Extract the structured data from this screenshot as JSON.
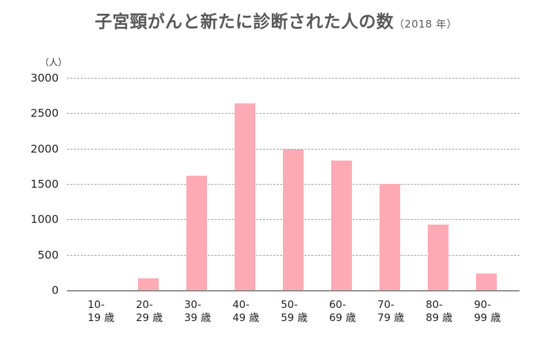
{
  "chart_data": {
    "type": "bar",
    "title": "子宮頸がんと新たに診断された人の数",
    "subtitle": "（2018 年）",
    "xlabel": "",
    "ylabel": "（人）",
    "ylim": [
      0,
      3000
    ],
    "yticks": [
      0,
      500,
      1000,
      1500,
      2000,
      2500,
      3000
    ],
    "grid": true,
    "legend": null,
    "categories": [
      "10-19歳",
      "20-29歳",
      "30-39歳",
      "40-49歳",
      "50-59歳",
      "60-69歳",
      "70-79歳",
      "80-89歳",
      "90-99歳"
    ],
    "category_labels": [
      {
        "line1": "10-",
        "line2": "19 歳"
      },
      {
        "line1": "20-",
        "line2": "29 歳"
      },
      {
        "line1": "30-",
        "line2": "39 歳"
      },
      {
        "line1": "40-",
        "line2": "49 歳"
      },
      {
        "line1": "50-",
        "line2": "59 歳"
      },
      {
        "line1": "60-",
        "line2": "69 歳"
      },
      {
        "line1": "70-",
        "line2": "79 歳"
      },
      {
        "line1": "80-",
        "line2": "89 歳"
      },
      {
        "line1": "90-",
        "line2": "99 歳"
      }
    ],
    "values": [
      0,
      170,
      1620,
      2640,
      1990,
      1830,
      1500,
      930,
      235
    ],
    "bar_color": "#ffaab4"
  },
  "colors": {
    "bar": "#ffaab4",
    "grid": "#9a9a9a",
    "axis": "#8c8c8c",
    "title": "#595959"
  }
}
